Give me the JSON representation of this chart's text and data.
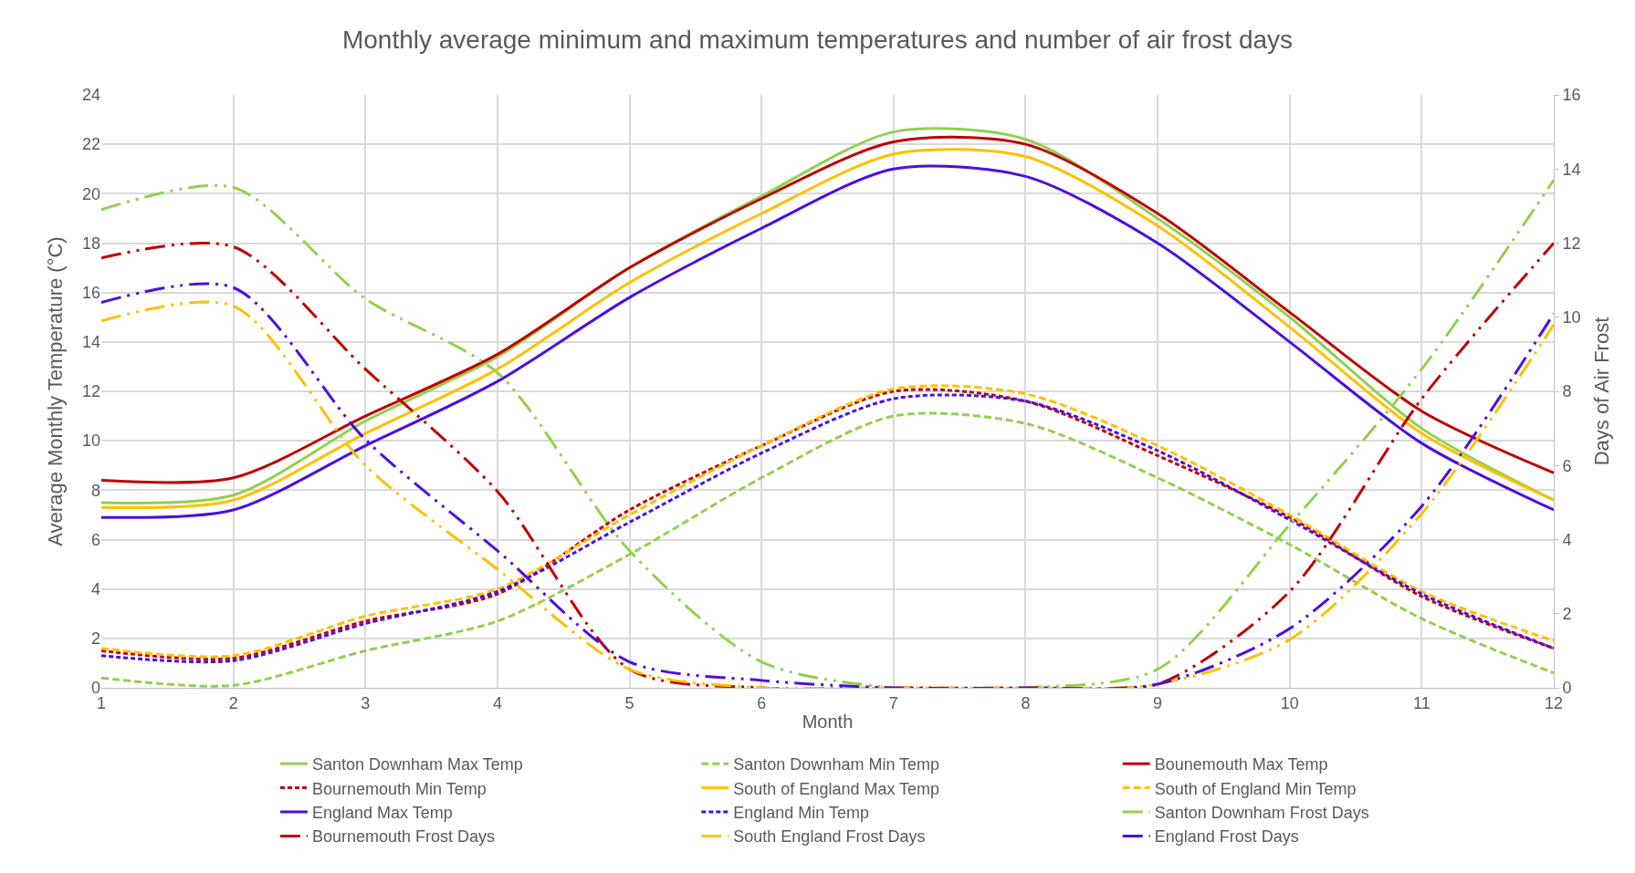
{
  "chart_data": {
    "type": "line",
    "title": "Monthly average minimum and maximum temperatures and number of air frost days",
    "xlabel": "Month",
    "ylabel": "Average Monthly Temperature (°C)",
    "y2label": "Days of Air Frost",
    "x": [
      1,
      2,
      3,
      4,
      5,
      6,
      7,
      8,
      9,
      10,
      11,
      12
    ],
    "xlim": [
      1,
      12
    ],
    "xticks": [
      1,
      2,
      3,
      4,
      5,
      6,
      7,
      8,
      9,
      10,
      11,
      12
    ],
    "ylim": [
      0,
      24
    ],
    "yticks": [
      0,
      2,
      4,
      6,
      8,
      10,
      12,
      14,
      16,
      18,
      20,
      22,
      24
    ],
    "y2lim": [
      0,
      16
    ],
    "y2ticks": [
      0,
      2,
      4,
      6,
      8,
      10,
      12,
      14,
      16
    ],
    "grid": true,
    "legend": "bottom",
    "marker": "none",
    "series": [
      {
        "name": "Santon Downham Max Temp",
        "color": "#92d050",
        "line_style": "solid",
        "values": [
          7.5,
          7.8,
          10.8,
          13.4,
          17.0,
          19.9,
          22.5,
          22.2,
          19.0,
          15.0,
          10.5,
          7.6
        ]
      },
      {
        "name": "Santon Downham Min Temp",
        "color": "#92d050",
        "line_style": "dashed",
        "values": [
          0.4,
          0.1,
          1.5,
          2.7,
          5.4,
          8.5,
          11.0,
          10.7,
          8.5,
          5.8,
          2.8,
          0.6
        ]
      },
      {
        "name": "Bounemouth Max Temp",
        "color": "#c00000",
        "line_style": "solid",
        "values": [
          8.4,
          8.5,
          11.0,
          13.5,
          17.0,
          19.8,
          22.1,
          22.0,
          19.2,
          15.2,
          11.2,
          8.7
        ]
      },
      {
        "name": "Bournemouth Min Temp",
        "color": "#c00000",
        "line_style": "dotted",
        "values": [
          1.5,
          1.2,
          2.7,
          3.8,
          7.2,
          9.8,
          12.0,
          11.6,
          9.4,
          6.9,
          3.7,
          1.6
        ]
      },
      {
        "name": "South of England Max Temp",
        "color": "#ffc000",
        "line_style": "solid",
        "values": [
          7.3,
          7.6,
          10.3,
          12.9,
          16.4,
          19.2,
          21.6,
          21.5,
          18.7,
          14.6,
          10.3,
          7.6
        ]
      },
      {
        "name": "South of England Min Temp",
        "color": "#ffc000",
        "line_style": "dashed",
        "values": [
          1.6,
          1.3,
          2.9,
          4.0,
          7.0,
          9.8,
          12.1,
          11.9,
          9.8,
          7.0,
          3.9,
          1.9
        ]
      },
      {
        "name": "England Max Temp",
        "color": "#4b0fe0",
        "line_style": "solid",
        "values": [
          6.9,
          7.2,
          9.8,
          12.4,
          15.8,
          18.6,
          21.0,
          20.7,
          18.0,
          14.0,
          9.9,
          7.2
        ]
      },
      {
        "name": "England Min Temp",
        "color": "#4b0fe0",
        "line_style": "dotted",
        "values": [
          1.3,
          1.1,
          2.6,
          3.9,
          6.7,
          9.5,
          11.7,
          11.6,
          9.6,
          6.8,
          3.8,
          1.6
        ]
      },
      {
        "name": "Santon Downham Frost Days",
        "color": "#92d050",
        "line_style": "dashdot",
        "axis": "y2",
        "values": [
          12.9,
          13.5,
          10.5,
          8.5,
          3.7,
          0.7,
          0,
          0,
          0.5,
          4.4,
          8.6,
          13.7
        ]
      },
      {
        "name": "Bournemouth Frost Days",
        "color": "#c00000",
        "line_style": "dashdot",
        "axis": "y2",
        "values": [
          11.6,
          11.9,
          8.6,
          5.3,
          0.5,
          0,
          0,
          0,
          0.1,
          2.6,
          7.8,
          12.0
        ]
      },
      {
        "name": "South England Frost Days",
        "color": "#ffc000",
        "line_style": "dashdot",
        "axis": "y2",
        "values": [
          9.9,
          10.3,
          6.0,
          3.2,
          0.5,
          0,
          0,
          0,
          0.1,
          1.3,
          4.7,
          9.8
        ]
      },
      {
        "name": "England Frost Days",
        "color": "#4b0fe0",
        "line_style": "dashdot",
        "axis": "y2",
        "values": [
          10.4,
          10.8,
          6.7,
          3.7,
          0.7,
          0.2,
          0,
          0,
          0.1,
          1.6,
          4.9,
          10.1
        ]
      }
    ]
  }
}
